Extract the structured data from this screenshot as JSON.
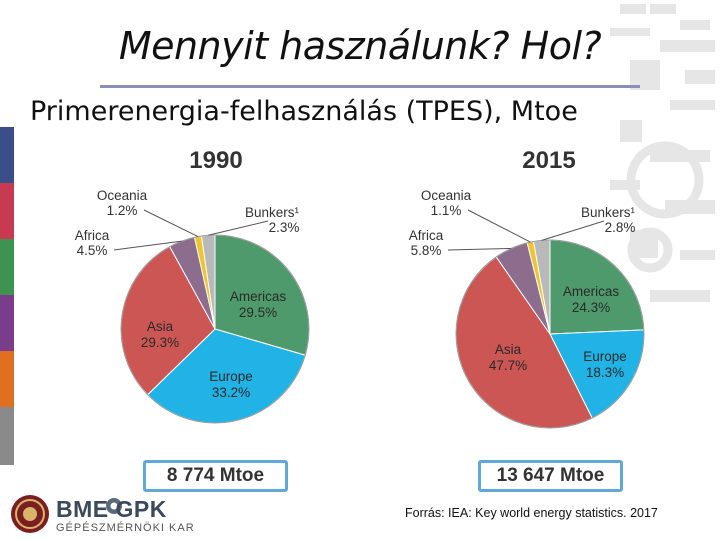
{
  "slide": {
    "title": "Mennyit használunk? Hol?",
    "subtitle": "Primerenergia-felhasználás (TPES), Mtoe",
    "source": "Forrás: IEA: Key world energy statistics. 2017",
    "logo_main": "BME GPK",
    "logo_sub": "GÉPÉSZMÉRNÖKI KAR"
  },
  "chart_data": [
    {
      "type": "pie",
      "title": "1990",
      "total": "8 774 Mtoe",
      "slices": [
        {
          "name": "Americas",
          "value": 29.5,
          "label": "29.5%",
          "color": "#4f9a6c"
        },
        {
          "name": "Europe",
          "value": 33.2,
          "label": "33.2%",
          "color": "#22b3e6"
        },
        {
          "name": "Asia",
          "value": 29.3,
          "label": "29.3%",
          "color": "#cc5654"
        },
        {
          "name": "Africa",
          "value": 4.5,
          "label": "4.5%",
          "color": "#8c6d8e"
        },
        {
          "name": "Oceania",
          "value": 1.2,
          "label": "1.2%",
          "color": "#f0c431"
        },
        {
          "name": "Bunkers¹",
          "value": 2.3,
          "label": "2.3%",
          "color": "#b9b9b9"
        }
      ]
    },
    {
      "type": "pie",
      "title": "2015",
      "total": "13 647 Mtoe",
      "slices": [
        {
          "name": "Americas",
          "value": 24.3,
          "label": "24.3%",
          "color": "#4f9a6c"
        },
        {
          "name": "Europe",
          "value": 18.3,
          "label": "18.3%",
          "color": "#22b3e6"
        },
        {
          "name": "Asia",
          "value": 47.7,
          "label": "47.7%",
          "color": "#cc5654"
        },
        {
          "name": "Africa",
          "value": 5.8,
          "label": "5.8%",
          "color": "#8c6d8e"
        },
        {
          "name": "Oceania",
          "value": 1.1,
          "label": "1.1%",
          "color": "#f0c431"
        },
        {
          "name": "Bunkers¹",
          "value": 2.8,
          "label": "2.8%",
          "color": "#b9b9b9"
        }
      ]
    }
  ],
  "theme": {
    "stripe_colors": [
      "#3a4f8a",
      "#c83a52",
      "#3f9350",
      "#7a3d8c",
      "#e07020",
      "#8a8a8a"
    ],
    "deco_color": "#e4e4e4",
    "total_border_color": "#5fa9d4"
  }
}
